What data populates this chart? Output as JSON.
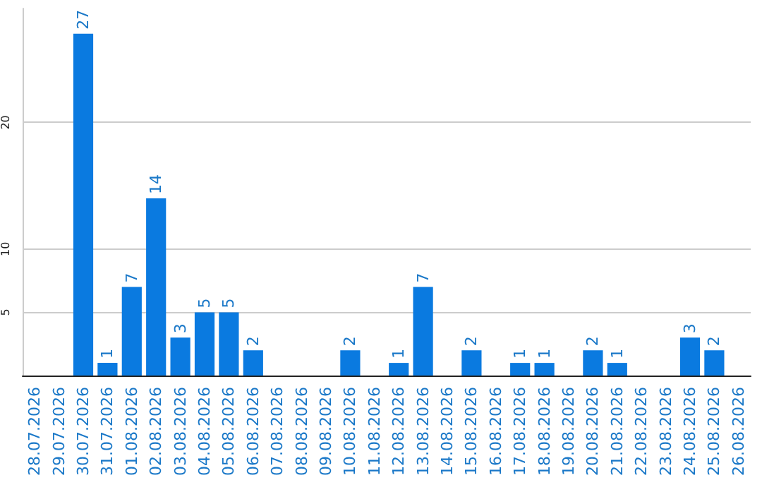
{
  "chart_data": {
    "type": "bar",
    "categories": [
      "28.07.2026",
      "29.07.2026",
      "30.07.2026",
      "31.07.2026",
      "01.08.2026",
      "02.08.2026",
      "03.08.2026",
      "04.08.2026",
      "05.08.2026",
      "06.08.2026",
      "07.08.2026",
      "08.08.2026",
      "09.08.2026",
      "10.08.2026",
      "11.08.2026",
      "12.08.2026",
      "13.08.2026",
      "14.08.2026",
      "15.08.2026",
      "16.08.2026",
      "17.08.2026",
      "18.08.2026",
      "19.08.2026",
      "20.08.2026",
      "21.08.2026",
      "22.08.2026",
      "23.08.2026",
      "24.08.2026",
      "25.08.2026",
      "26.08.2026"
    ],
    "values": [
      0,
      0,
      27,
      1,
      7,
      14,
      3,
      5,
      5,
      2,
      0,
      0,
      0,
      2,
      0,
      1,
      7,
      0,
      2,
      0,
      1,
      1,
      0,
      2,
      1,
      0,
      0,
      3,
      2,
      0
    ],
    "value_labels": [
      null,
      null,
      "27",
      "1",
      "7",
      "14",
      "3",
      "5",
      "5",
      "2",
      null,
      null,
      null,
      "2",
      null,
      "1",
      "7",
      null,
      "2",
      null,
      "1",
      "1",
      null,
      "2",
      "1",
      null,
      null,
      "3",
      "2",
      null
    ],
    "color": "#0a7ae0",
    "ylim": [
      0,
      29
    ],
    "yticks": [
      5,
      10,
      20
    ],
    "grid": "y"
  }
}
